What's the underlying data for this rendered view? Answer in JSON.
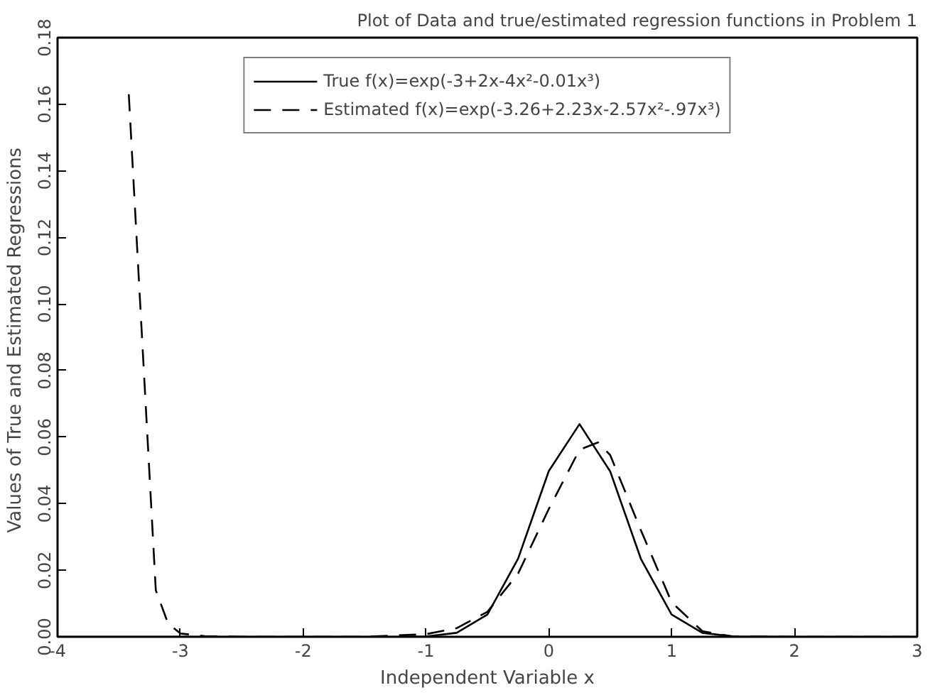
{
  "chart_data": {
    "type": "line",
    "title": "Plot of Data and true/estimated regression functions in Problem 1",
    "xlabel": "Independent Variable x",
    "ylabel": "Values of True and Estimated  Regressions",
    "xlim": [
      -4,
      3
    ],
    "ylim": [
      0,
      0.18
    ],
    "xticks": [
      -4,
      -3,
      -2,
      -1,
      0,
      1,
      2,
      3
    ],
    "yticks": [
      {
        "value": 0,
        "label": "0.00"
      },
      {
        "value": 0.02,
        "label": "0.02"
      },
      {
        "value": 0.04,
        "label": "0.04"
      },
      {
        "value": 0.06,
        "label": "0.06"
      },
      {
        "value": 0.08,
        "label": "0.08"
      },
      {
        "value": 0.1,
        "label": "0.10"
      },
      {
        "value": 0.12,
        "label": "0.12"
      },
      {
        "value": 0.14,
        "label": "0.14"
      },
      {
        "value": 0.16,
        "label": "0.16"
      },
      {
        "value": 0.18,
        "label": "0.18"
      }
    ],
    "grid": false,
    "legend": "top",
    "marker": "none",
    "series": [
      {
        "name": "True f(x)=exp(-3+2x-4x²-0.01x³)",
        "color": "#000000",
        "line_style": "solid",
        "x": [
          -4,
          -2,
          -1.25,
          -1,
          -0.75,
          -0.5,
          -0.25,
          0,
          0.25,
          0.5,
          0.75,
          1,
          1.25,
          1.5,
          2,
          3
        ],
        "values": [
          0,
          0,
          0,
          0.0001,
          0.0012,
          0.0067,
          0.0235,
          0.0498,
          0.0639,
          0.0497,
          0.0234,
          0.0067,
          0.0012,
          0.0001,
          0,
          0
        ]
      },
      {
        "name": "Estimated f(x)=exp(-3.26+2.23x-2.57x²-.97x³)",
        "color": "#000000",
        "line_style": "dashed",
        "x": [
          -3.42,
          -3.2,
          -3.1,
          -3.0,
          -2.8,
          -2.5,
          -1.5,
          -1,
          -0.75,
          -0.5,
          -0.25,
          0,
          0.25,
          0.4,
          0.5,
          0.75,
          1,
          1.25,
          1.5,
          2,
          3
        ],
        "values": [
          0.163,
          0.014,
          0.004,
          0.001,
          0.0002,
          0,
          0,
          0.0008,
          0.0026,
          0.0075,
          0.019,
          0.0384,
          0.0562,
          0.0584,
          0.0546,
          0.032,
          0.0104,
          0.0017,
          0.0001,
          0,
          0
        ]
      }
    ]
  }
}
